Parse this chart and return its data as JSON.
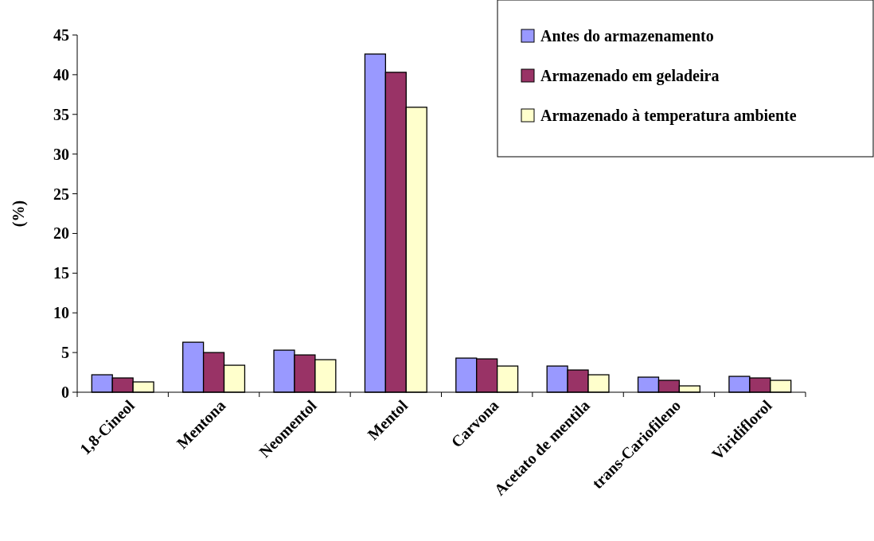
{
  "chart_data": {
    "type": "bar",
    "ylabel": "(%)",
    "categories": [
      "1,8-Cineol",
      "Mentona",
      "Neomentol",
      "Mentol",
      "Carvona",
      "Acetato de mentila",
      "trans-Cariofileno",
      "Viridiflorol"
    ],
    "series": [
      {
        "name": "Antes do armazenamento",
        "color": "#9999ff",
        "values": [
          2.2,
          6.3,
          5.3,
          42.6,
          4.3,
          3.3,
          1.9,
          2.0
        ]
      },
      {
        "name": "Armazenado em geladeira",
        "color": "#993366",
        "values": [
          1.8,
          5.0,
          4.7,
          40.3,
          4.2,
          2.8,
          1.5,
          1.8
        ]
      },
      {
        "name": "Armazenado à temperatura ambiente",
        "color": "#ffffcc",
        "values": [
          1.3,
          3.4,
          4.1,
          35.9,
          3.3,
          2.2,
          0.8,
          1.5
        ]
      }
    ],
    "ylim": [
      0,
      45
    ],
    "yticks": [
      0,
      5,
      10,
      15,
      20,
      25,
      30,
      35,
      40,
      45
    ],
    "grid": false,
    "legend": "top right"
  }
}
